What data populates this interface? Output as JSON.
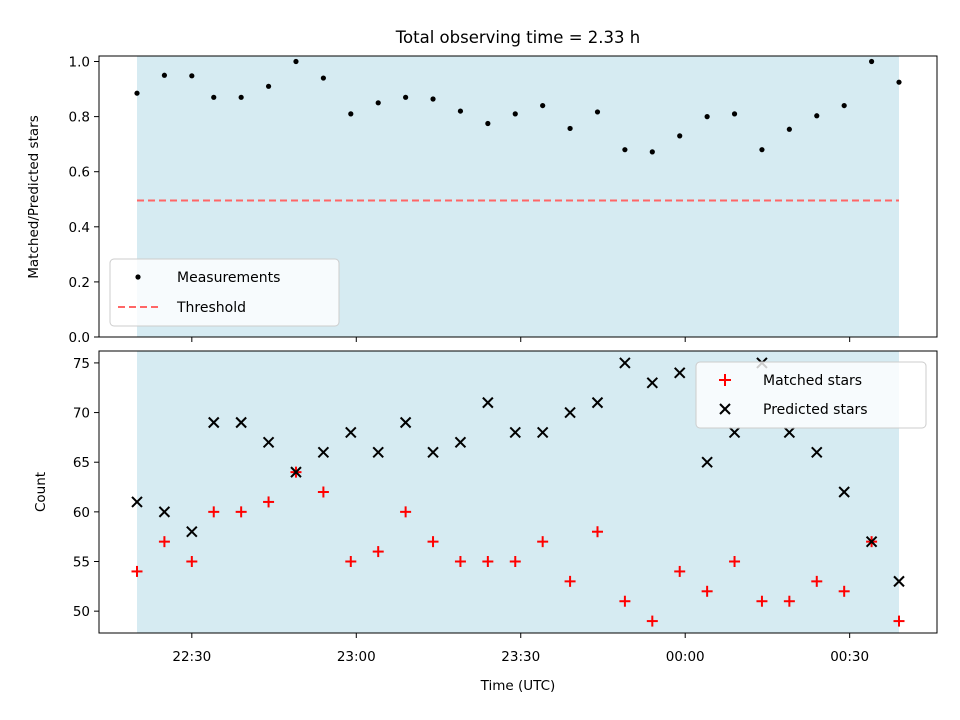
{
  "title": "Total observing time = 2.33 h",
  "chart_data": [
    {
      "type": "scatter",
      "ylabel": "Matched/Predicted stars",
      "ylim": [
        0.0,
        1.02
      ],
      "yticks": [
        "0.0",
        "0.2",
        "0.4",
        "0.6",
        "0.8",
        "1.0"
      ],
      "shaded_region": {
        "color": "#add8e6",
        "x_start": "22:20",
        "x_end": "00:39"
      },
      "x": [
        "22:20",
        "22:25",
        "22:30",
        "22:34",
        "22:39",
        "22:44",
        "22:49",
        "22:54",
        "22:59",
        "23:04",
        "23:09",
        "23:14",
        "23:19",
        "23:24",
        "23:29",
        "23:34",
        "23:39",
        "23:44",
        "23:49",
        "23:54",
        "23:59",
        "00:04",
        "00:09",
        "00:14",
        "00:19",
        "00:24",
        "00:29",
        "00:34",
        "00:39"
      ],
      "series": [
        {
          "name": "Measurements",
          "color": "#000000",
          "values": [
            0.885,
            0.95,
            0.948,
            0.87,
            0.87,
            0.91,
            1.0,
            0.94,
            0.81,
            0.85,
            0.87,
            0.864,
            0.82,
            0.775,
            0.81,
            0.84,
            0.757,
            0.817,
            0.68,
            0.672,
            0.73,
            0.8,
            0.81,
            0.68,
            0.754,
            0.803,
            0.84,
            1.0,
            0.925
          ]
        },
        {
          "name": "Threshold",
          "color": "#ff6666",
          "style": "dashed",
          "values": [
            0.5,
            0.5
          ]
        }
      ],
      "legend": "lower-left"
    },
    {
      "type": "scatter",
      "ylabel": "Count",
      "xlabel": "Time (UTC)",
      "ylim": [
        47.8,
        76.2
      ],
      "yticks": [
        "50",
        "55",
        "60",
        "65",
        "70",
        "75"
      ],
      "xticks": [
        "22:30",
        "23:00",
        "23:30",
        "00:00",
        "00:30"
      ],
      "shaded_region": {
        "color": "#add8e6",
        "x_start": "22:20",
        "x_end": "00:39"
      },
      "x": [
        "22:20",
        "22:25",
        "22:30",
        "22:34",
        "22:39",
        "22:44",
        "22:49",
        "22:54",
        "22:59",
        "23:04",
        "23:09",
        "23:14",
        "23:19",
        "23:24",
        "23:29",
        "23:34",
        "23:39",
        "23:44",
        "23:49",
        "23:54",
        "23:59",
        "00:04",
        "00:09",
        "00:14",
        "00:19",
        "00:24",
        "00:29",
        "00:34",
        "00:39"
      ],
      "series": [
        {
          "name": "Matched stars",
          "color": "#ff0000",
          "marker": "+",
          "values": [
            54,
            57,
            55,
            60,
            60,
            61,
            64,
            62,
            55,
            56,
            60,
            57,
            55,
            55,
            55,
            57,
            53,
            58,
            51,
            49,
            54,
            52,
            55,
            51,
            51,
            53,
            52,
            57,
            49
          ]
        },
        {
          "name": "Predicted stars",
          "color": "#000000",
          "marker": "x",
          "values": [
            61,
            60,
            58,
            69,
            69,
            67,
            64,
            66,
            68,
            66,
            69,
            66,
            67,
            71,
            68,
            68,
            70,
            71,
            75,
            73,
            74,
            65,
            68,
            75,
            68,
            66,
            62,
            57,
            53
          ]
        }
      ],
      "legend": "upper-right"
    }
  ]
}
